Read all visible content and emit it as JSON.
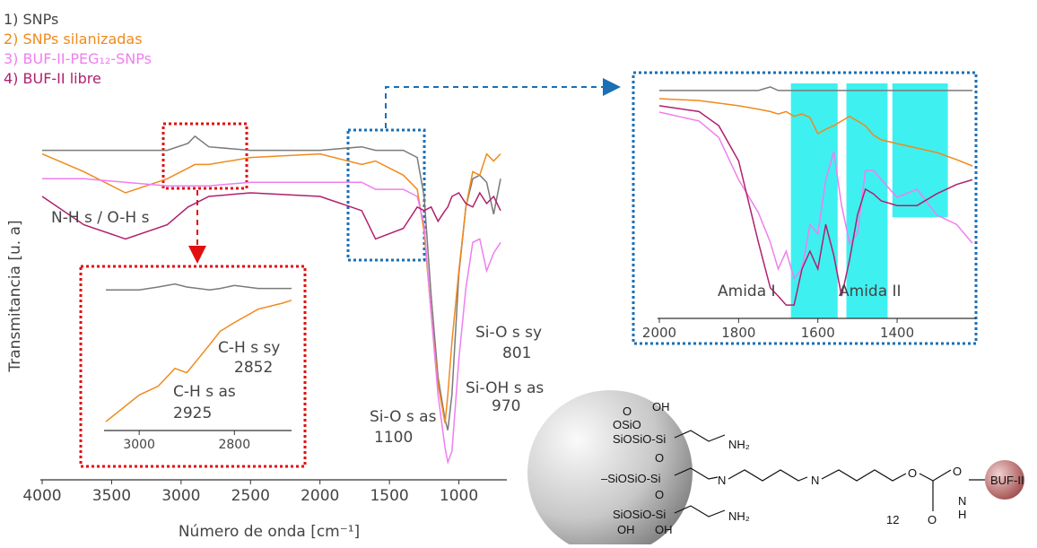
{
  "chart_data": [
    {
      "type": "line",
      "x_label": "Número de onda [cm⁻¹]",
      "y_label": "Transmitancia [u. a]",
      "x": [
        4000,
        3700,
        3400,
        3100,
        2950,
        2900,
        2800,
        2500,
        2000,
        1700,
        1600,
        1400,
        1300,
        1250,
        1200,
        1150,
        1100,
        1080,
        1050,
        1000,
        950,
        900,
        850,
        800,
        750,
        700
      ],
      "xlim": [
        4000,
        700
      ],
      "xticks": [
        4000,
        3500,
        3000,
        2500,
        2000,
        1500,
        1000
      ],
      "ylim": [
        0,
        100
      ],
      "series": [
        {
          "name": "1) SNPs",
          "color": "#7a7a7a",
          "values": [
            93,
            93,
            93,
            93,
            95,
            97,
            94,
            93,
            93,
            94,
            93,
            93,
            91,
            80,
            52,
            29,
            17,
            14,
            24,
            58,
            77,
            85,
            86,
            84,
            75,
            85
          ]
        },
        {
          "name": "2) SNPs silanizadas",
          "color": "#f08a1c",
          "values": [
            92,
            87,
            81,
            85,
            88,
            89,
            89,
            91,
            92,
            89,
            90,
            86,
            82,
            70,
            47,
            27,
            16,
            24,
            39,
            59,
            77,
            87,
            86,
            92,
            90,
            92
          ]
        },
        {
          "name": "3) BUF-II-PEG₁₂-SNPs",
          "color": "#f07ef0",
          "values": [
            85,
            85,
            84,
            83,
            83,
            83,
            83,
            84,
            84,
            84,
            82,
            82,
            80,
            72,
            47,
            24,
            9,
            5,
            8,
            34,
            54,
            67,
            68,
            59,
            64,
            67
          ]
        },
        {
          "name": "4) BUF-II libre",
          "color": "#b0206e",
          "values": [
            80,
            72,
            68,
            72,
            77,
            78,
            80,
            81,
            80,
            76,
            68,
            71,
            77,
            76,
            77,
            73,
            76,
            77,
            80,
            81,
            78,
            77,
            81,
            78,
            80,
            76
          ]
        }
      ],
      "annotations": [
        "N-H s / O-H s",
        "Si-O s as",
        "1100",
        "Si-OH s as",
        "970",
        "Si-O s sy",
        "801"
      ]
    },
    {
      "type": "line",
      "x": [
        3070,
        3000,
        2960,
        2925,
        2900,
        2852,
        2830,
        2800,
        2750,
        2700,
        2680
      ],
      "xlim": [
        3070,
        2680
      ],
      "xticks": [
        3000,
        2800
      ],
      "ylim": [
        0,
        100
      ],
      "series": [
        {
          "color": "#7a7a7a",
          "values": [
            95,
            95,
            97,
            99,
            97,
            95,
            96,
            98,
            96,
            96,
            96
          ]
        },
        {
          "color": "#f08a1c",
          "values": [
            6,
            24,
            30,
            42,
            39,
            58,
            67,
            73,
            82,
            86,
            88
          ]
        }
      ],
      "annotations": [
        "C-H s sy",
        "2852",
        "C-H s as",
        "2925"
      ]
    },
    {
      "type": "line",
      "x": [
        2000,
        1900,
        1850,
        1800,
        1750,
        1720,
        1700,
        1680,
        1660,
        1640,
        1620,
        1600,
        1580,
        1560,
        1540,
        1520,
        1500,
        1480,
        1460,
        1440,
        1400,
        1350,
        1300,
        1250,
        1210
      ],
      "xlim": [
        2000,
        1210
      ],
      "xticks": [
        2000,
        1800,
        1600,
        1400
      ],
      "ylim": [
        0,
        100
      ],
      "highlights": [
        {
          "xrange": [
            1668,
            1550
          ],
          "yrange": [
            0,
            100
          ]
        },
        {
          "xrange": [
            1528,
            1424
          ],
          "yrange": [
            0,
            100
          ]
        },
        {
          "xrange": [
            1412,
            1272
          ],
          "yrange": [
            43,
            100
          ]
        }
      ],
      "highlight_color": "#3ff0f0",
      "series": [
        {
          "color": "#7a7a7a",
          "values": [
            97,
            97,
            97,
            97,
            97,
            98.5,
            97,
            97,
            97,
            97,
            97,
            97,
            97,
            97,
            97,
            97,
            97,
            97,
            97,
            97,
            97,
            97,
            97,
            97,
            97
          ]
        },
        {
          "color": "#f08a1c",
          "values": [
            93.5,
            92.7,
            91.6,
            90.5,
            89,
            88,
            87,
            88,
            86,
            87,
            85.5,
            78.6,
            80.5,
            82,
            84,
            86,
            84,
            82,
            78,
            76,
            74.4,
            72.5,
            70.6,
            67.6,
            64.9
          ]
        },
        {
          "color": "#f07ef0",
          "values": [
            87.8,
            84,
            77,
            59,
            45,
            32.4,
            21,
            28.6,
            17,
            21,
            40,
            36,
            59,
            71,
            48,
            32,
            36,
            63,
            63,
            59,
            51.5,
            55,
            44,
            40,
            32
          ]
        },
        {
          "color": "#b0206e",
          "values": [
            90.5,
            88,
            82,
            67,
            32.4,
            13,
            9.5,
            5.7,
            5.7,
            21,
            28.6,
            21,
            40,
            27,
            9.5,
            25,
            44,
            55,
            53,
            50,
            48,
            48,
            53,
            57,
            59
          ]
        }
      ],
      "annotations": [
        "Amida I",
        "Amida  II"
      ]
    }
  ],
  "structure": {
    "labels": [
      "O",
      "OSiO",
      "OH",
      "SiOSiO-Si",
      "NH₂",
      "O",
      "–SiOSiO-Si",
      "N",
      "N",
      "O",
      "O",
      "BUF-II",
      "12",
      "O",
      "N",
      "H",
      "O",
      "SiOSiO-Si",
      "NH₂",
      "OH",
      "OH"
    ]
  }
}
